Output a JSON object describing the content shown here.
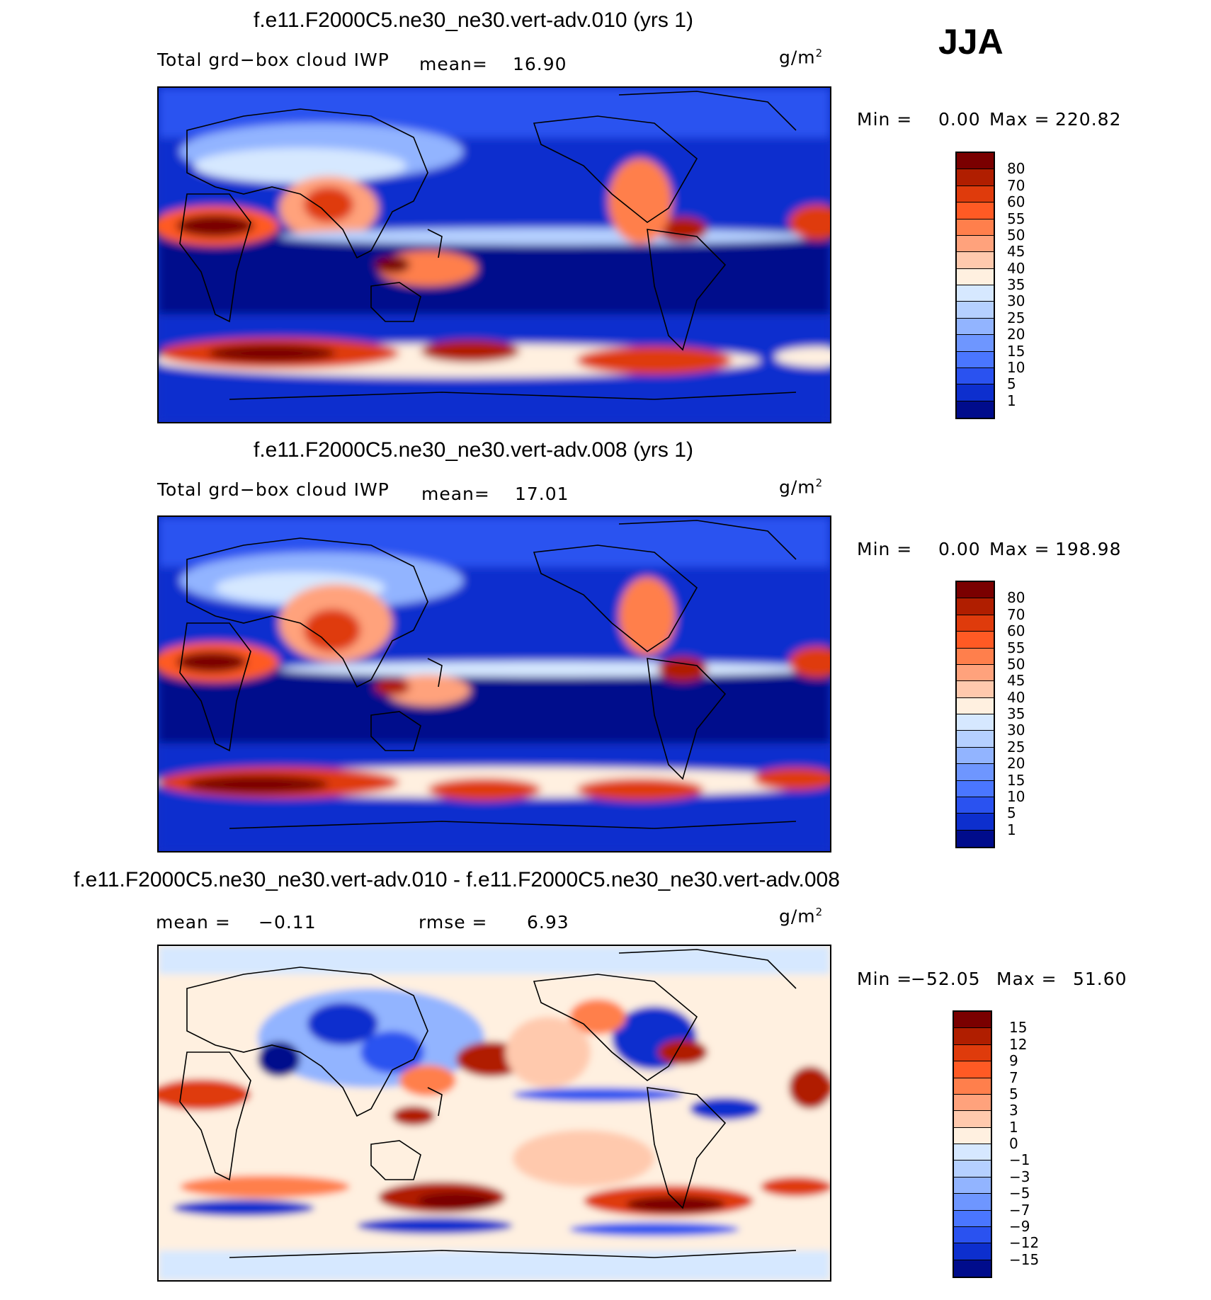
{
  "season": "JJA",
  "panels": [
    {
      "title": "f.e11.F2000C5.ne30_ne30.vert-adv.010 (yrs 1)",
      "variable": "Total grd−box cloud IWP",
      "mean_label": "mean=",
      "mean_value": "16.90",
      "units_base": "g/m",
      "units_exp": "2",
      "min_label": "Min =",
      "min_value": "0.00",
      "max_label": "Max =",
      "max_value": "220.82",
      "levels": [
        "80",
        "70",
        "60",
        "55",
        "50",
        "45",
        "40",
        "35",
        "30",
        "25",
        "20",
        "15",
        "10",
        "5",
        "1"
      ],
      "colors": [
        "#7a0000",
        "#b01e00",
        "#df3b0c",
        "#ff5a24",
        "#ff7f4c",
        "#ffa27c",
        "#ffc9ad",
        "#fff0e0",
        "#d6e8ff",
        "#b5d0ff",
        "#92b4ff",
        "#6e96ff",
        "#4a76ff",
        "#2a52f0",
        "#0d2fce",
        "#000c8c"
      ]
    },
    {
      "title": "f.e11.F2000C5.ne30_ne30.vert-adv.008 (yrs 1)",
      "variable": "Total grd−box cloud IWP",
      "mean_label": "mean=",
      "mean_value": "17.01",
      "units_base": "g/m",
      "units_exp": "2",
      "min_label": "Min =",
      "min_value": "0.00",
      "max_label": "Max =",
      "max_value": "198.98",
      "levels": [
        "80",
        "70",
        "60",
        "55",
        "50",
        "45",
        "40",
        "35",
        "30",
        "25",
        "20",
        "15",
        "10",
        "5",
        "1"
      ],
      "colors": [
        "#7a0000",
        "#b01e00",
        "#df3b0c",
        "#ff5a24",
        "#ff7f4c",
        "#ffa27c",
        "#ffc9ad",
        "#fff0e0",
        "#d6e8ff",
        "#b5d0ff",
        "#92b4ff",
        "#6e96ff",
        "#4a76ff",
        "#2a52f0",
        "#0d2fce",
        "#000c8c"
      ]
    },
    {
      "title": "f.e11.F2000C5.ne30_ne30.vert-adv.010 - f.e11.F2000C5.ne30_ne30.vert-adv.008",
      "mean_label": "mean =",
      "mean_value": "−0.11",
      "rmse_label": "rmse =",
      "rmse_value": "6.93",
      "units_base": "g/m",
      "units_exp": "2",
      "min_label": "Min =",
      "min_value": "−52.05",
      "max_label": "Max =",
      "max_value": "51.60",
      "levels": [
        "15",
        "12",
        "9",
        "7",
        "5",
        "3",
        "1",
        "0",
        "−1",
        "−3",
        "−5",
        "−7",
        "−9",
        "−12",
        "−15"
      ],
      "colors": [
        "#7a0000",
        "#b01e00",
        "#df3b0c",
        "#ff5a24",
        "#ff7f4c",
        "#ffa27c",
        "#ffc9ad",
        "#fff0e0",
        "#d6e8ff",
        "#b5d0ff",
        "#92b4ff",
        "#6e96ff",
        "#4a76ff",
        "#2a52f0",
        "#0d2fce",
        "#000c8c"
      ]
    }
  ]
}
